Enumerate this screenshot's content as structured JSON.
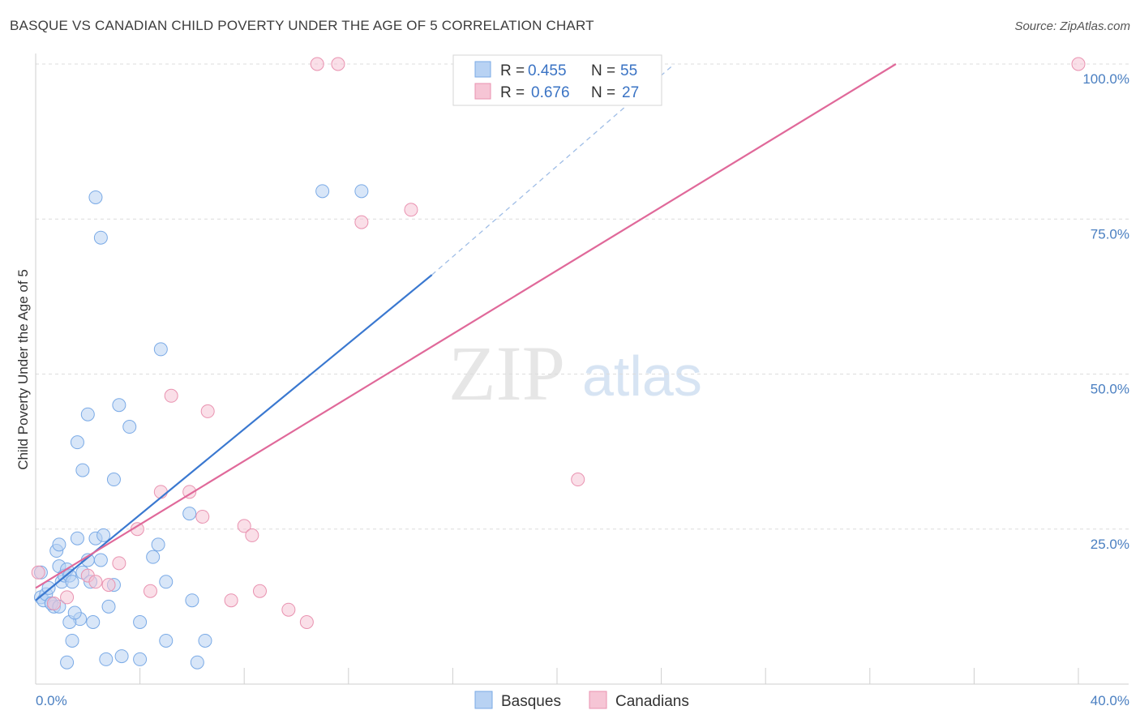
{
  "title": "BASQUE VS CANADIAN CHILD POVERTY UNDER THE AGE OF 5 CORRELATION CHART",
  "source": "Source: ZipAtlas.com",
  "watermark": {
    "zip": "ZIP",
    "atlas": "atlas"
  },
  "legend": {
    "rows": [
      {
        "r_label": "R = ",
        "r_value": "0.455",
        "n_label": "N = ",
        "n_value": "55",
        "color": "#7aaae6",
        "fill": "#b8d2f3"
      },
      {
        "r_label": "R = ",
        "r_value": "0.676",
        "n_label": "N = ",
        "n_value": "27",
        "color": "#e992b0",
        "fill": "#f6c5d5"
      }
    ]
  },
  "bottom_legend": [
    {
      "label": "Basques",
      "fill": "#b8d2f3",
      "stroke": "#7aaae6"
    },
    {
      "label": "Canadians",
      "fill": "#f6c5d5",
      "stroke": "#e992b0"
    }
  ],
  "chart_data": {
    "type": "scatter",
    "title": "BASQUE VS CANADIAN CHILD POVERTY UNDER THE AGE OF 5 CORRELATION CHART",
    "xlabel": "",
    "ylabel": "Child Poverty Under the Age of 5",
    "xlim": [
      0,
      40
    ],
    "ylim": [
      0,
      100
    ],
    "x_tick_labels": [
      {
        "value": 0,
        "label": "0.0%"
      },
      {
        "value": 40,
        "label": "40.0%"
      }
    ],
    "y_tick_labels": [
      {
        "value": 25,
        "label": "25.0%"
      },
      {
        "value": 50,
        "label": "50.0%"
      },
      {
        "value": 75,
        "label": "75.0%"
      },
      {
        "value": 100,
        "label": "100.0%"
      }
    ],
    "grid": true,
    "legend_position": "top-center",
    "series": [
      {
        "name": "Basques",
        "color": "#3a78d0",
        "marker_fill": "#b8d2f3",
        "marker_stroke": "#7aaae6",
        "points": [
          [
            0.2,
            18
          ],
          [
            0.2,
            14
          ],
          [
            0.3,
            13.5
          ],
          [
            0.4,
            14.5
          ],
          [
            0.6,
            13
          ],
          [
            0.7,
            12.5
          ],
          [
            0.5,
            15.5
          ],
          [
            0.8,
            21.5
          ],
          [
            0.9,
            19
          ],
          [
            0.9,
            22.5
          ],
          [
            1.0,
            16.5
          ],
          [
            1.1,
            17.5
          ],
          [
            1.2,
            18.5
          ],
          [
            1.3,
            17.5
          ],
          [
            1.4,
            16.5
          ],
          [
            1.6,
            23.5
          ],
          [
            1.7,
            10.5
          ],
          [
            1.8,
            18
          ],
          [
            2.0,
            20
          ],
          [
            2.1,
            16.5
          ],
          [
            2.3,
            23.5
          ],
          [
            2.5,
            20
          ],
          [
            2.6,
            24
          ],
          [
            2.8,
            12.5
          ],
          [
            3.0,
            16
          ],
          [
            2.3,
            78.5
          ],
          [
            2.5,
            72
          ],
          [
            1.6,
            39
          ],
          [
            2.0,
            43.5
          ],
          [
            1.8,
            34.5
          ],
          [
            3.2,
            45
          ],
          [
            3.6,
            41.5
          ],
          [
            3.0,
            33
          ],
          [
            4.8,
            54
          ],
          [
            4.7,
            22.5
          ],
          [
            4.5,
            20.5
          ],
          [
            5.0,
            16.5
          ],
          [
            5.9,
            27.5
          ],
          [
            6.0,
            13.5
          ],
          [
            4.0,
            10
          ],
          [
            2.2,
            10
          ],
          [
            1.3,
            10
          ],
          [
            1.4,
            7
          ],
          [
            1.2,
            3.5
          ],
          [
            2.7,
            4
          ],
          [
            3.3,
            4.5
          ],
          [
            4.0,
            4
          ],
          [
            5.0,
            7
          ],
          [
            6.2,
            3.5
          ],
          [
            6.5,
            7
          ],
          [
            11.0,
            79.5
          ],
          [
            12.5,
            79.5
          ],
          [
            0.6,
            13
          ],
          [
            0.9,
            12.5
          ],
          [
            1.5,
            11.5
          ]
        ],
        "trend": {
          "x0": 0,
          "y0": 13.5,
          "x1": 15.2,
          "y1": 66,
          "dash_x1": 24.5,
          "dash_y1": 100
        }
      },
      {
        "name": "Canadians",
        "color": "#e0699a",
        "marker_fill": "#f6c5d5",
        "marker_stroke": "#e992b0",
        "points": [
          [
            0.1,
            18
          ],
          [
            0.7,
            13
          ],
          [
            1.2,
            14
          ],
          [
            2.0,
            17.5
          ],
          [
            2.3,
            16.5
          ],
          [
            2.8,
            16
          ],
          [
            3.2,
            19.5
          ],
          [
            3.9,
            25
          ],
          [
            4.4,
            15
          ],
          [
            4.8,
            31
          ],
          [
            5.2,
            46.5
          ],
          [
            5.9,
            31
          ],
          [
            6.4,
            27
          ],
          [
            6.6,
            44
          ],
          [
            7.5,
            13.5
          ],
          [
            8.0,
            25.5
          ],
          [
            8.3,
            24
          ],
          [
            8.6,
            15
          ],
          [
            9.7,
            12
          ],
          [
            10.4,
            10
          ],
          [
            10.8,
            100
          ],
          [
            11.6,
            100
          ],
          [
            12.5,
            74.5
          ],
          [
            14.4,
            76.5
          ],
          [
            20.8,
            33
          ],
          [
            21.6,
            100
          ],
          [
            40.0,
            100
          ]
        ],
        "trend": {
          "x0": 0,
          "y0": 15.5,
          "x1": 33,
          "y1": 100
        }
      }
    ]
  }
}
